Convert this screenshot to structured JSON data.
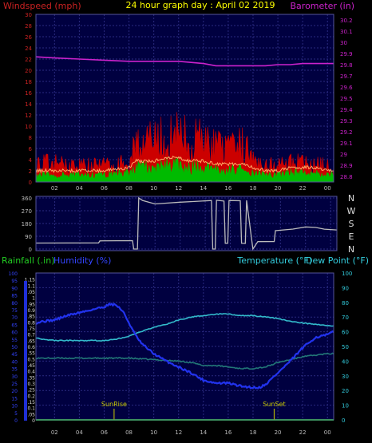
{
  "header": {
    "title": "24 hour graph day : April 02 2019",
    "left_label": "Windspeed (mph)",
    "right_label": "Barometer (in)"
  },
  "colors": {
    "background": "#000000",
    "plot_bg": "#000040",
    "grid": "#2a2a80",
    "wind_gust": "#cc0000",
    "wind_avg": "#00bb00",
    "wind_line": "#ffaa66",
    "barometer": "#cc22cc",
    "direction": "#bbbbbb",
    "humidity": "#2233ee",
    "temperature": "#33bbcc",
    "dewpoint": "#227777",
    "rain": "#22cc22",
    "sun_marker": "#cccc00",
    "title": "#ffff00"
  },
  "chart_data": [
    {
      "type": "area",
      "panel": "wind",
      "title": "24 hour graph day : April 02 2019",
      "ylabel": "Windspeed (mph)",
      "y2label": "Barometer (in)",
      "x_ticks": [
        "02",
        "04",
        "06",
        "08",
        "10",
        "12",
        "14",
        "16",
        "18",
        "20",
        "22",
        "00"
      ],
      "x_range": [
        0.5,
        24.5
      ],
      "ylim": [
        0,
        30
      ],
      "y_ticks": [
        0,
        2,
        4,
        6,
        8,
        10,
        12,
        14,
        16,
        18,
        20,
        22,
        24,
        26,
        28,
        30
      ],
      "y2lim": [
        28.75,
        30.25
      ],
      "y2_ticks": [
        "28.8",
        "28.9",
        "29",
        "29.1",
        "29.2",
        "29.3",
        "29.4",
        "29.5",
        "29.6",
        "29.7",
        "29.8",
        "29.9",
        "30",
        "30.1",
        "30.2"
      ],
      "x": [
        0.5,
        2,
        4,
        6,
        8,
        8.5,
        9,
        10,
        11,
        12,
        13,
        14,
        15,
        16,
        17,
        18,
        19,
        20,
        21,
        22,
        23,
        24,
        24.5
      ],
      "series": [
        {
          "name": "Gust",
          "values": [
            4,
            4,
            3.5,
            3.5,
            4,
            9,
            8.5,
            8.5,
            9.5,
            10,
            9,
            9,
            7.5,
            6.5,
            8,
            6,
            4,
            3.5,
            4,
            4,
            3.5,
            3.5,
            3.5
          ]
        },
        {
          "name": "Average",
          "values": [
            1.5,
            1.5,
            1.5,
            1.5,
            2,
            3,
            3,
            3,
            3.5,
            3.5,
            3,
            3,
            2.5,
            2.5,
            2.5,
            2,
            1.5,
            1.5,
            2,
            2,
            2,
            1.5,
            1.5
          ]
        },
        {
          "name": "Barometer",
          "values": [
            29.87,
            29.86,
            29.85,
            29.84,
            29.83,
            29.83,
            29.83,
            29.83,
            29.83,
            29.83,
            29.82,
            29.81,
            29.79,
            29.79,
            29.79,
            29.79,
            29.79,
            29.8,
            29.8,
            29.81,
            29.81,
            29.81,
            29.81
          ]
        }
      ]
    },
    {
      "type": "line",
      "panel": "direction",
      "ylim": [
        0,
        360
      ],
      "y_ticks": [
        0,
        90,
        180,
        270,
        360
      ],
      "compass": [
        "N",
        "W",
        "S",
        "E",
        "N"
      ],
      "series": [
        {
          "name": "Direction",
          "points": [
            [
              0.5,
              45
            ],
            [
              5.5,
              45
            ],
            [
              5.6,
              60
            ],
            [
              8.2,
              60
            ],
            [
              8.3,
              0
            ],
            [
              8.6,
              0
            ],
            [
              8.7,
              360
            ],
            [
              9,
              340
            ],
            [
              10,
              320
            ],
            [
              12,
              330
            ],
            [
              13,
              335
            ],
            [
              14.5,
              340
            ],
            [
              14.6,
              0
            ],
            [
              14.8,
              0
            ],
            [
              14.9,
              345
            ],
            [
              15.5,
              335
            ],
            [
              15.6,
              40
            ],
            [
              15.8,
              40
            ],
            [
              15.9,
              340
            ],
            [
              16.8,
              340
            ],
            [
              16.9,
              40
            ],
            [
              17.2,
              40
            ],
            [
              17.3,
              340
            ],
            [
              17.8,
              0
            ],
            [
              18.2,
              50
            ],
            [
              19.5,
              50
            ],
            [
              19.6,
              130
            ],
            [
              21,
              140
            ],
            [
              22,
              155
            ],
            [
              22.8,
              150
            ],
            [
              23.5,
              140
            ],
            [
              24.5,
              135
            ]
          ]
        }
      ]
    },
    {
      "type": "line",
      "panel": "temperature",
      "left_labels": [
        "Rainfall (.in)",
        "Humidity (%)"
      ],
      "right_labels": [
        "Temperature (°F)",
        "Dew Point (°F)"
      ],
      "rain_ylim": [
        0,
        1.2
      ],
      "rain_ticks": [
        "0",
        "0.05",
        "0.1",
        "0.15",
        "0.2",
        "0.25",
        "0.3",
        "0.35",
        "0.4",
        "0.45",
        "0.5",
        "0.55",
        "0.6",
        "0.65",
        "0.7",
        "0.75",
        "0.8",
        "0.85",
        "0.9",
        "0.95",
        "1",
        "1.05",
        "1.1",
        "1.15"
      ],
      "humidity_ylim": [
        0,
        100
      ],
      "humidity_ticks": [
        0,
        5,
        10,
        15,
        20,
        25,
        30,
        35,
        40,
        45,
        50,
        55,
        60,
        65,
        70,
        75,
        80,
        85,
        90,
        95,
        100
      ],
      "temperature_ylim": [
        0,
        100
      ],
      "temperature_ticks": [
        0,
        10,
        20,
        30,
        40,
        50,
        60,
        70,
        80,
        90,
        100
      ],
      "x_ticks": [
        "02",
        "04",
        "06",
        "08",
        "10",
        "12",
        "14",
        "16",
        "18",
        "20",
        "22",
        "00"
      ],
      "x_range": [
        0.5,
        24.5
      ],
      "sunrise": {
        "label": "SunRise",
        "hour": 6.8
      },
      "sunset": {
        "label": "SunSet",
        "hour": 19.7
      },
      "series": [
        {
          "name": "Humidity",
          "x": [
            0.5,
            1,
            2,
            3,
            4,
            5,
            6,
            6.5,
            7,
            7.5,
            8,
            8.5,
            9,
            10,
            11,
            12,
            13,
            14,
            15,
            16,
            17,
            18,
            18.5,
            19,
            20,
            21,
            22,
            23,
            24,
            24.5
          ],
          "values": [
            66,
            67,
            68,
            71,
            73,
            75,
            77,
            79,
            78,
            74,
            66,
            58,
            52,
            45,
            40,
            36,
            32,
            27,
            25,
            25,
            23,
            22,
            22,
            24,
            32,
            40,
            49,
            56,
            58,
            60
          ]
        },
        {
          "name": "Temperature",
          "x": [
            0.5,
            1,
            2,
            3,
            4,
            5,
            6,
            7,
            8,
            9,
            10,
            11,
            12,
            13,
            14,
            15,
            16,
            17,
            18,
            19,
            20,
            21,
            22,
            23,
            24,
            24.5
          ],
          "values": [
            56,
            55,
            54,
            54,
            54,
            54,
            54,
            55,
            57,
            60,
            63,
            65,
            68,
            70,
            71,
            72,
            72,
            71,
            71,
            70,
            69,
            67,
            66,
            65,
            64,
            64
          ]
        },
        {
          "name": "Dew Point",
          "x": [
            0.5,
            2,
            4,
            6,
            8,
            10,
            12,
            13,
            14,
            15,
            16,
            17,
            18,
            19,
            20,
            21,
            22,
            23,
            24,
            24.5
          ],
          "values": [
            42,
            42,
            42,
            42,
            42,
            41,
            40,
            39,
            37,
            37,
            36,
            35,
            35,
            36,
            39,
            41,
            43,
            44,
            45,
            45
          ]
        },
        {
          "name": "Rainfall",
          "x": [
            0.5,
            24.5
          ],
          "values": [
            0,
            0
          ]
        }
      ]
    }
  ]
}
